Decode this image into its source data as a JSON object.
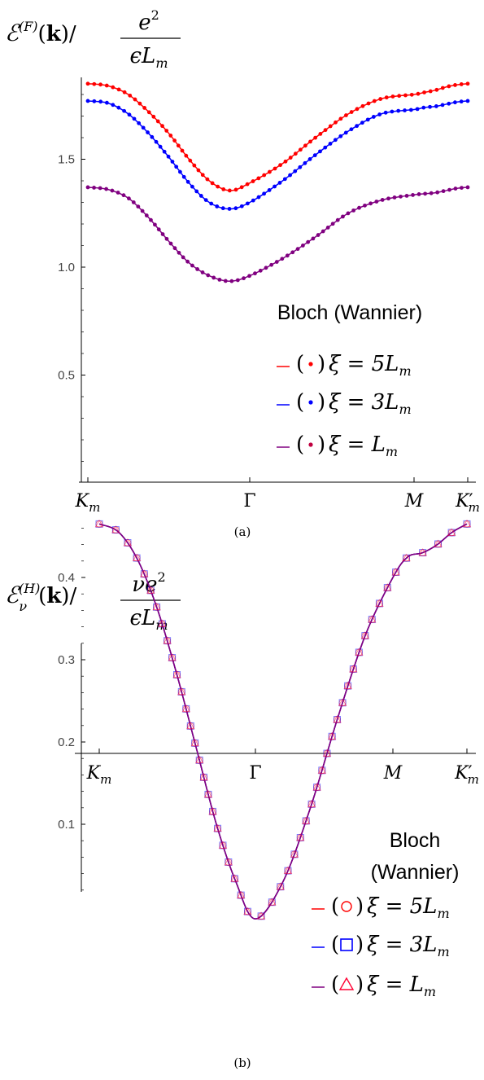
{
  "chart_data": [
    {
      "type": "line",
      "panel_label": "(a)",
      "ylabel": {
        "base": "ℰ",
        "sup": "(F)",
        "arg": "(k)/",
        "num": "e",
        "num_sup": "2",
        "den": "ϵL",
        "den_sub": "m"
      },
      "yticks": [
        "1.5",
        "1.0",
        "0.5"
      ],
      "ylim": [
        0.0,
        1.9
      ],
      "xticks": [
        {
          "base": "K",
          "sub": "m",
          "prime": ""
        },
        {
          "base": "Γ",
          "sub": "",
          "prime": ""
        },
        {
          "base": "M",
          "sub": "",
          "prime": ""
        },
        {
          "base": "K",
          "sub": "m",
          "prime": "′"
        }
      ],
      "legend_title": "Bloch (Wannier)",
      "marker": "dot",
      "series": [
        {
          "name": "ξ = 5L",
          "name_sub": "m",
          "color": "#ff0000",
          "marker_color": "#ff0000",
          "values": [
            1.85,
            1.84,
            1.8,
            1.72,
            1.62,
            1.5,
            1.4,
            1.355,
            1.39,
            1.48,
            1.6,
            1.71,
            1.78,
            1.8,
            1.81,
            1.82,
            1.835,
            1.845,
            1.85
          ]
        },
        {
          "name": "ξ = 3L",
          "name_sub": "m",
          "color": "#0000ff",
          "marker_color": "#0000ff",
          "values": [
            1.77,
            1.76,
            1.71,
            1.62,
            1.51,
            1.39,
            1.3,
            1.27,
            1.3,
            1.4,
            1.52,
            1.63,
            1.71,
            1.73,
            1.74,
            1.745,
            1.755,
            1.765,
            1.77
          ]
        },
        {
          "name": "ξ = L",
          "name_sub": "m",
          "color": "#800080",
          "marker_color": "#800080",
          "values": [
            1.37,
            1.36,
            1.32,
            1.23,
            1.12,
            1.02,
            0.96,
            0.935,
            0.96,
            1.04,
            1.14,
            1.25,
            1.31,
            1.335,
            1.34,
            1.345,
            1.355,
            1.365,
            1.37
          ]
        }
      ]
    },
    {
      "type": "line",
      "panel_label": "(b)",
      "ylabel": {
        "base": "ℰ",
        "sup": "(H)",
        "sub": "ν",
        "arg": "(k)/",
        "num": "νe",
        "num_sup": "2",
        "den": "ϵL",
        "den_sub": "m"
      },
      "yticks": [
        "0.4",
        "0.3",
        "0.2",
        "0.1"
      ],
      "ylim": [
        -0.02,
        0.48
      ],
      "xticks": [
        {
          "base": "K",
          "sub": "m",
          "prime": ""
        },
        {
          "base": "Γ",
          "sub": "",
          "prime": ""
        },
        {
          "base": "M",
          "sub": "",
          "prime": ""
        },
        {
          "base": "K",
          "sub": "m",
          "prime": "′"
        }
      ],
      "legend_title": "Bloch\n(Wannier)",
      "series": [
        {
          "name": "ξ = 5L",
          "name_sub": "m",
          "color": "#ff0000",
          "marker": "circle",
          "marker_color": "#ff0000",
          "values": [
            0.465,
            0.455,
            0.42,
            0.36,
            0.28,
            0.19,
            0.1,
            0.03,
            -0.015,
            0.03,
            0.12,
            0.23,
            0.33,
            0.4,
            0.425,
            0.43,
            0.44,
            0.455,
            0.465
          ]
        },
        {
          "name": "ξ = 3L",
          "name_sub": "m",
          "color": "#0000ff",
          "marker": "square",
          "marker_color": "#0000ff",
          "values": [
            0.465,
            0.455,
            0.42,
            0.36,
            0.28,
            0.19,
            0.1,
            0.03,
            -0.015,
            0.03,
            0.12,
            0.23,
            0.33,
            0.4,
            0.425,
            0.43,
            0.44,
            0.455,
            0.465
          ]
        },
        {
          "name": "ξ = L",
          "name_sub": "m",
          "color": "#800080",
          "marker": "triangle",
          "marker_color": "#ff0033",
          "values": [
            0.465,
            0.455,
            0.42,
            0.36,
            0.28,
            0.19,
            0.1,
            0.03,
            -0.015,
            0.03,
            0.12,
            0.23,
            0.33,
            0.4,
            0.425,
            0.43,
            0.44,
            0.455,
            0.465
          ]
        }
      ]
    }
  ]
}
